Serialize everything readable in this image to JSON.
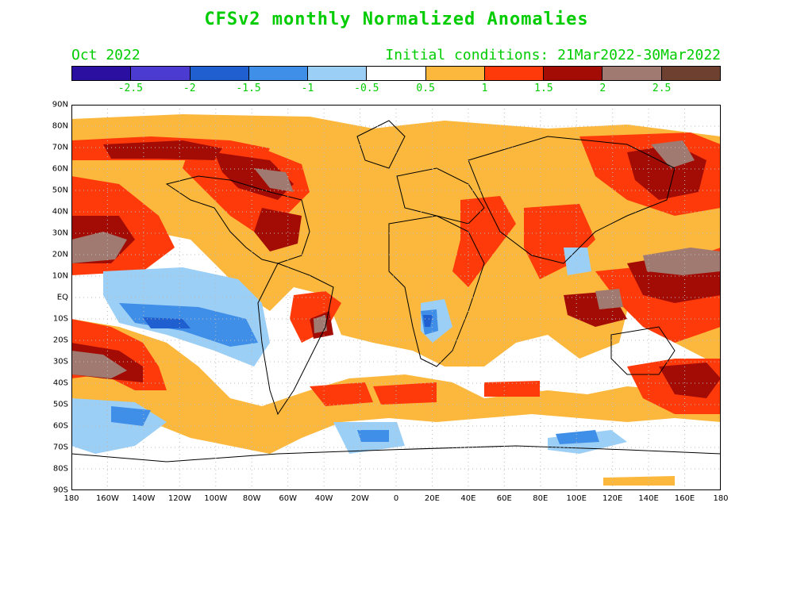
{
  "header": {
    "title": "CFSv2 monthly Normalized Anomalies",
    "month": "Oct 2022",
    "init": "Initial conditions: 21Mar2022-30Mar2022"
  },
  "colorbar": {
    "colors": [
      "#2a0fa0",
      "#4c3bd0",
      "#1f5fd0",
      "#3f8ee8",
      "#9ccff6",
      "#ffffff",
      "#fbb83d",
      "#ff3a0a",
      "#a30c05",
      "#a07a70",
      "#6e4030"
    ],
    "labels": [
      "-2.5",
      "-2",
      "-1.5",
      "-1",
      "-0.5",
      "0.5",
      "1",
      "1.5",
      "2",
      "2.5"
    ]
  },
  "axes": {
    "lat_labels": [
      "90N",
      "80N",
      "70N",
      "60N",
      "50N",
      "40N",
      "30N",
      "20N",
      "10N",
      "EQ",
      "10S",
      "20S",
      "30S",
      "40S",
      "50S",
      "60S",
      "70S",
      "80S",
      "90S"
    ],
    "lon_labels": [
      "180",
      "160W",
      "140W",
      "120W",
      "100W",
      "80W",
      "60W",
      "40W",
      "20W",
      "0",
      "20E",
      "40E",
      "60E",
      "80E",
      "100E",
      "120E",
      "140E",
      "160E",
      "180"
    ]
  }
}
